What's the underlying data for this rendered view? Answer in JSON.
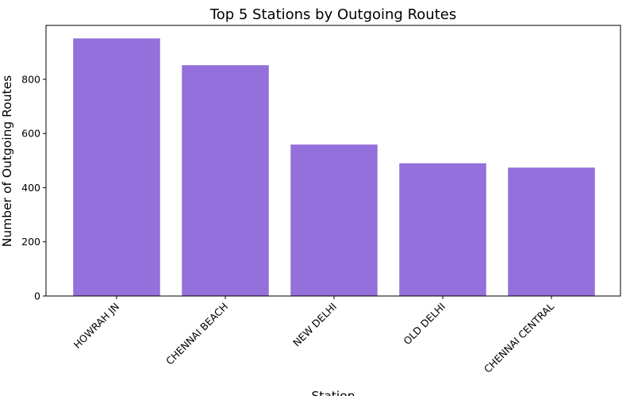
{
  "chart_data": {
    "type": "bar",
    "title": "Top 5 Stations by Outgoing Routes",
    "xlabel": "Station",
    "ylabel": "Number of Outgoing Routes",
    "categories": [
      "HOWRAH JN",
      "CHENNAI BEACH",
      "NEW DELHI",
      "OLD DELHI",
      "CHENNAI CENTRAL"
    ],
    "values": [
      951,
      852,
      559,
      490,
      474
    ],
    "yticks": [
      0,
      200,
      400,
      600,
      800
    ],
    "ylim": [
      0,
      999
    ],
    "bar_color": "#9370db",
    "grid": false,
    "legend": "none"
  }
}
